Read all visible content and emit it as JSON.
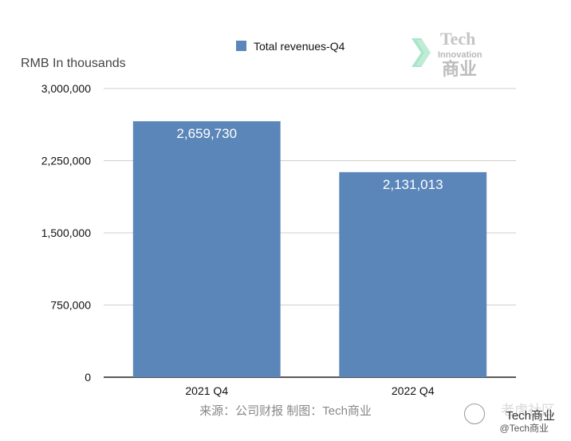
{
  "chart_data": {
    "type": "bar",
    "ylabel": "RMB In thousands",
    "categories": [
      "2021 Q4",
      "2022 Q4"
    ],
    "series": [
      {
        "name": "Total revenues-Q4",
        "values": [
          2659730,
          2131013
        ]
      }
    ],
    "data_labels": [
      "2,659,730",
      "2,131,013"
    ],
    "yticks": [
      "0",
      "750,000",
      "1,500,000",
      "2,250,000",
      "3,000,000"
    ],
    "ylim": [
      0,
      3000000
    ],
    "grid": true,
    "legend_position": "top-center",
    "bar_color": "#5b86b9"
  },
  "logo": {
    "line1": "Tech",
    "line2": "Innovation",
    "line3": "商业"
  },
  "source_text": "来源：公司财报 制图：Tech商业",
  "watermark": {
    "line1": "老虎社区",
    "line2": "Tech商业",
    "line3": "@Tech商业"
  }
}
